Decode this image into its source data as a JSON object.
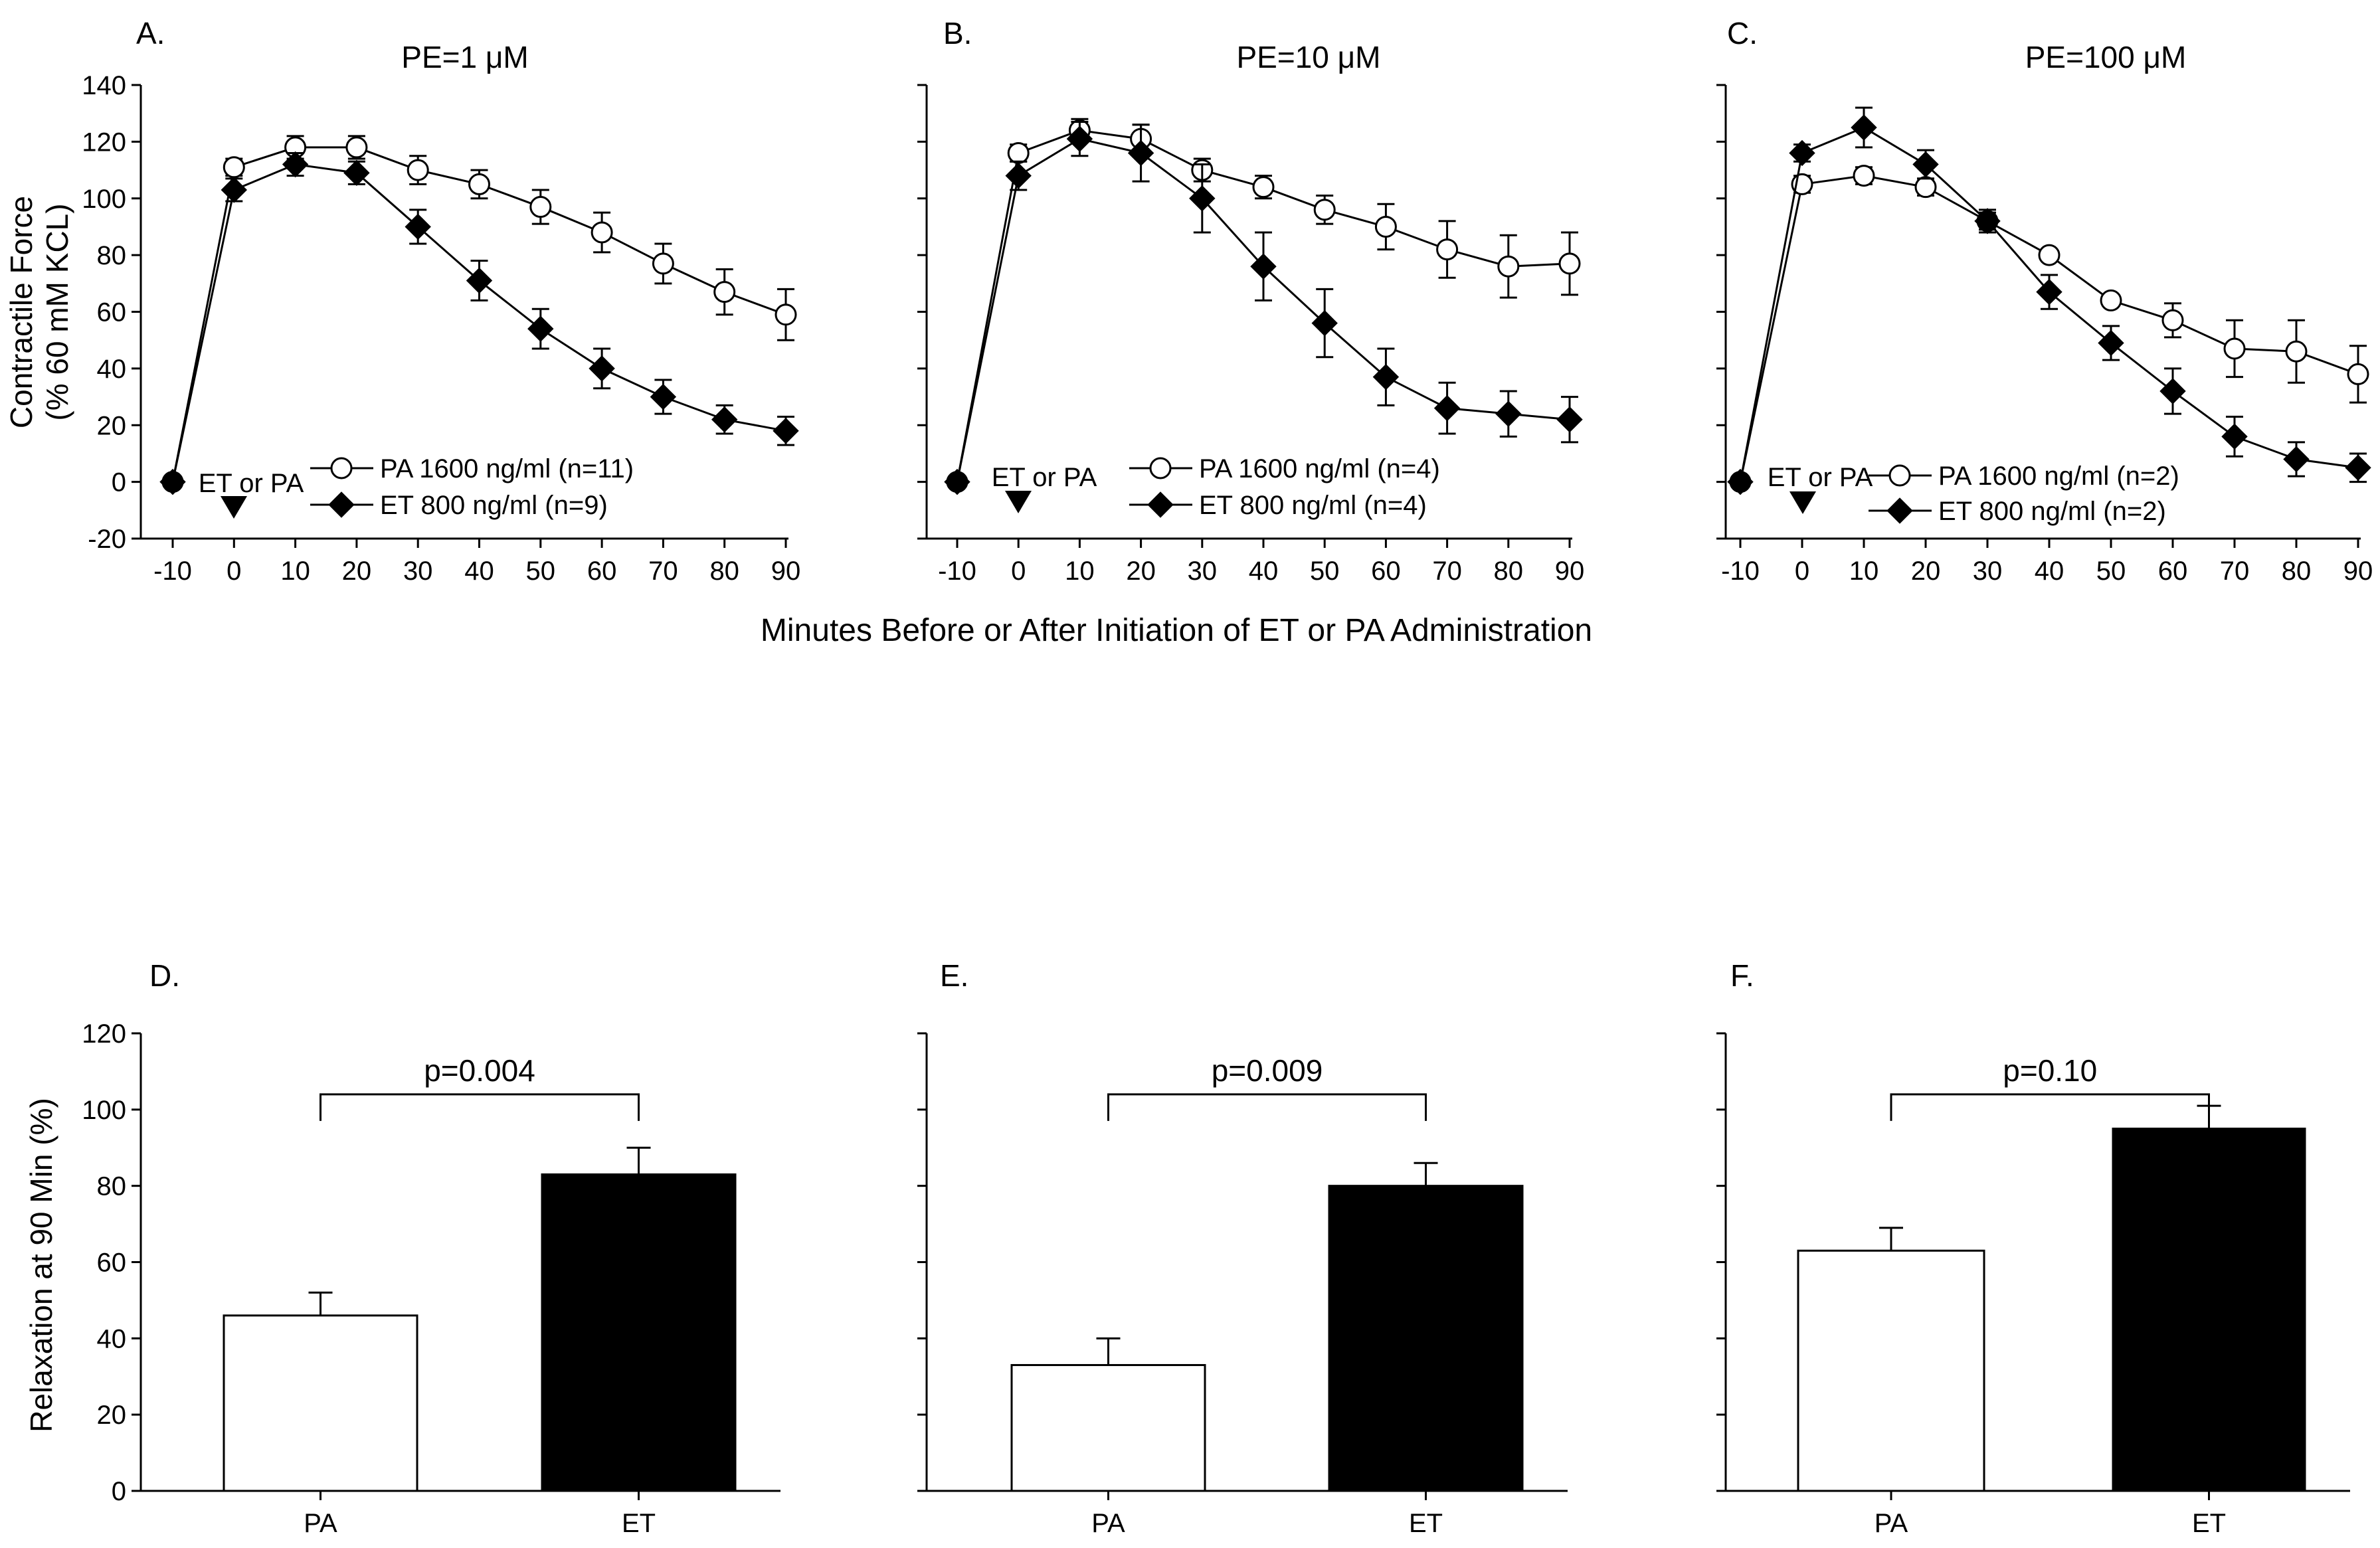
{
  "figure_xlabel": "Minutes Before or After Initiation of ET or PA Administration",
  "chart_data": [
    {
      "id": "A",
      "type": "line",
      "panel_label": "A.",
      "title": "PE=1  μM",
      "ylabel_line1": "Contractile Force",
      "ylabel_line2": "(% 60 mM KCL)",
      "xlim": [
        -10,
        90
      ],
      "ylim": [
        -20,
        140
      ],
      "x_ticks": [
        -10,
        0,
        10,
        20,
        30,
        40,
        50,
        60,
        70,
        80,
        90
      ],
      "y_ticks": [
        -20,
        0,
        20,
        40,
        60,
        80,
        100,
        120,
        140
      ],
      "annotation": "ET or PA",
      "series": [
        {
          "name": "PA 1600 ng/ml (n=11)",
          "marker": "open-circle",
          "x": [
            -10,
            0,
            10,
            20,
            30,
            40,
            50,
            60,
            70,
            80,
            90
          ],
          "values": [
            0,
            111,
            118,
            118,
            110,
            105,
            97,
            88,
            77,
            67,
            59
          ],
          "errors": [
            0,
            3,
            4,
            4,
            5,
            5,
            6,
            7,
            7,
            8,
            9
          ]
        },
        {
          "name": "ET 800 ng/ml (n=9)",
          "marker": "filled-diamond",
          "x": [
            -10,
            0,
            10,
            20,
            30,
            40,
            50,
            60,
            70,
            80,
            90
          ],
          "values": [
            0,
            103,
            112,
            109,
            90,
            71,
            54,
            40,
            30,
            22,
            18
          ],
          "errors": [
            0,
            4,
            4,
            4,
            6,
            7,
            7,
            7,
            6,
            5,
            5
          ]
        }
      ]
    },
    {
      "id": "B",
      "type": "line",
      "panel_label": "B.",
      "title": "PE=10  μM",
      "xlim": [
        -10,
        90
      ],
      "ylim": [
        -20,
        140
      ],
      "x_ticks": [
        -10,
        0,
        10,
        20,
        30,
        40,
        50,
        60,
        70,
        80,
        90
      ],
      "y_ticks": [
        -20,
        0,
        20,
        40,
        60,
        80,
        100,
        120,
        140
      ],
      "annotation": "ET or PA",
      "series": [
        {
          "name": "PA 1600 ng/ml (n=4)",
          "marker": "open-circle",
          "x": [
            -10,
            0,
            10,
            20,
            30,
            40,
            50,
            60,
            70,
            80,
            90
          ],
          "values": [
            0,
            116,
            124,
            121,
            110,
            104,
            96,
            90,
            82,
            76,
            77
          ],
          "errors": [
            0,
            3,
            4,
            5,
            4,
            4,
            5,
            8,
            10,
            11,
            11
          ]
        },
        {
          "name": "ET 800 ng/ml (n=4)",
          "marker": "filled-diamond",
          "x": [
            -10,
            0,
            10,
            20,
            30,
            40,
            50,
            60,
            70,
            80,
            90
          ],
          "values": [
            0,
            108,
            121,
            116,
            100,
            76,
            56,
            37,
            26,
            24,
            22
          ],
          "errors": [
            0,
            5,
            6,
            10,
            12,
            12,
            12,
            10,
            9,
            8,
            8
          ]
        }
      ]
    },
    {
      "id": "C",
      "type": "line",
      "panel_label": "C.",
      "title": "PE=100  μM",
      "xlim": [
        -10,
        90
      ],
      "ylim": [
        -20,
        140
      ],
      "x_ticks": [
        -10,
        0,
        10,
        20,
        30,
        40,
        50,
        60,
        70,
        80,
        90
      ],
      "y_ticks": [
        -20,
        0,
        20,
        40,
        60,
        80,
        100,
        120,
        140
      ],
      "annotation": "ET or PA",
      "series": [
        {
          "name": "PA 1600 ng/ml (n=2)",
          "marker": "open-circle",
          "x": [
            -10,
            0,
            10,
            20,
            30,
            40,
            50,
            60,
            70,
            80,
            90
          ],
          "values": [
            0,
            105,
            108,
            104,
            92,
            80,
            64,
            57,
            47,
            46,
            38
          ],
          "errors": [
            0,
            3,
            3,
            3,
            3,
            2,
            2,
            6,
            10,
            11,
            10
          ]
        },
        {
          "name": "ET 800 ng/ml (n=2)",
          "marker": "filled-diamond",
          "x": [
            -10,
            0,
            10,
            20,
            30,
            40,
            50,
            60,
            70,
            80,
            90
          ],
          "values": [
            0,
            116,
            125,
            112,
            92,
            67,
            49,
            32,
            16,
            8,
            5
          ],
          "errors": [
            0,
            3,
            7,
            5,
            4,
            6,
            6,
            8,
            7,
            6,
            5
          ]
        }
      ]
    },
    {
      "id": "D",
      "type": "bar",
      "panel_label": "D.",
      "ylabel": "Relaxation at 90 Min (%)",
      "categories": [
        "PA",
        "ET"
      ],
      "values": [
        46,
        83
      ],
      "errors": [
        6,
        7
      ],
      "bar_fills": [
        "#ffffff",
        "#000000"
      ],
      "ylim": [
        0,
        120
      ],
      "y_ticks": [
        0,
        20,
        40,
        60,
        80,
        100,
        120
      ],
      "significance": "p=0.004"
    },
    {
      "id": "E",
      "type": "bar",
      "panel_label": "E.",
      "categories": [
        "PA",
        "ET"
      ],
      "values": [
        33,
        80
      ],
      "errors": [
        7,
        6
      ],
      "bar_fills": [
        "#ffffff",
        "#000000"
      ],
      "ylim": [
        0,
        120
      ],
      "y_ticks": [
        0,
        20,
        40,
        60,
        80,
        100,
        120
      ],
      "significance": "p=0.009"
    },
    {
      "id": "F",
      "type": "bar",
      "panel_label": "F.",
      "categories": [
        "PA",
        "ET"
      ],
      "values": [
        63,
        95
      ],
      "errors": [
        6,
        6
      ],
      "bar_fills": [
        "#ffffff",
        "#000000"
      ],
      "ylim": [
        0,
        120
      ],
      "y_ticks": [
        0,
        20,
        40,
        60,
        80,
        100,
        120
      ],
      "significance": "p=0.10"
    }
  ]
}
